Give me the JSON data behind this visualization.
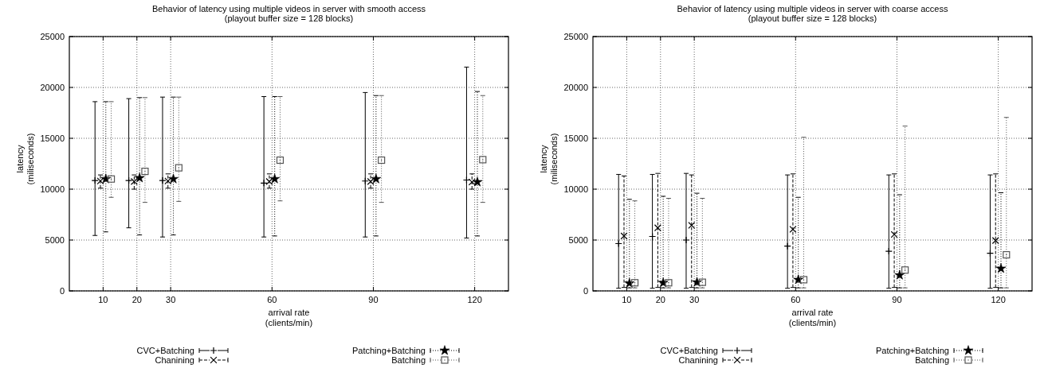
{
  "chart_data": [
    {
      "type": "scatter",
      "title": "Behavior of latency using multiple videos in server with smooth access",
      "subtitle": "(playout buffer size = 128 blocks)",
      "xlabel": "arrival rate\n(clients/min)",
      "ylabel": "latency\n(miliseconds)",
      "xlim": [
        0,
        130
      ],
      "xticks": [
        10,
        20,
        30,
        60,
        90,
        120
      ],
      "ylim": [
        0,
        25000
      ],
      "yticks": [
        0,
        5000,
        10000,
        15000,
        20000,
        25000
      ],
      "grid": true,
      "legend": "bottom",
      "series": [
        {
          "name": "CVC+Batching",
          "color": "#000000",
          "marker": "plus",
          "line_style": "solid",
          "x": [
            7.6,
            17.6,
            27.6,
            57.6,
            87.6,
            117.6
          ],
          "values": [
            10850,
            10850,
            10850,
            10600,
            10800,
            10900
          ],
          "errors": [
            [
              5450,
              18600
            ],
            [
              6200,
              18900
            ],
            [
              5300,
              19050
            ],
            [
              5300,
              19100
            ],
            [
              5300,
              19500
            ],
            [
              5200,
              22000
            ]
          ]
        },
        {
          "name": "Chanining",
          "color": "#000000",
          "marker": "cross",
          "line_style": "dashed",
          "x": [
            9.2,
            19.2,
            29.2,
            59.2,
            89.2,
            119.2
          ],
          "values": [
            10800,
            10750,
            10800,
            10750,
            10750,
            10700
          ],
          "errors": [
            [
              10100,
              11400
            ],
            [
              10000,
              11400
            ],
            [
              10100,
              11500
            ],
            [
              10100,
              11500
            ],
            [
              10100,
              11500
            ],
            [
              10000,
              11500
            ]
          ]
        },
        {
          "name": "Patching+Batching",
          "color": "#000000",
          "marker": "star",
          "line_style": "dotted",
          "x": [
            10.8,
            20.8,
            30.8,
            60.8,
            90.8,
            120.8
          ],
          "values": [
            11000,
            11100,
            11000,
            11000,
            11000,
            10700
          ],
          "errors": [
            [
              5800,
              18600
            ],
            [
              5500,
              19000
            ],
            [
              5500,
              19050
            ],
            [
              5400,
              19100
            ],
            [
              5400,
              19200
            ],
            [
              5400,
              19600
            ]
          ]
        },
        {
          "name": "Batching",
          "color": "#555555",
          "marker": "square",
          "line_style": "dotted",
          "x": [
            12.4,
            22.4,
            32.4,
            62.4,
            92.4,
            122.4
          ],
          "values": [
            11000,
            11750,
            12100,
            12850,
            12850,
            12900
          ],
          "errors": [
            [
              9200,
              18600
            ],
            [
              8700,
              19000
            ],
            [
              8800,
              19050
            ],
            [
              8850,
              19100
            ],
            [
              8700,
              19200
            ],
            [
              8700,
              19200
            ]
          ]
        }
      ]
    },
    {
      "type": "scatter",
      "title": "Behavior of latency using multiple videos in server with coarse access",
      "subtitle": "(playout buffer size = 128 blocks)",
      "xlabel": "arrival rate\n(clients/min)",
      "ylabel": "latency\n(miliseconds)",
      "xlim": [
        0,
        130
      ],
      "xticks": [
        10,
        20,
        30,
        60,
        90,
        120
      ],
      "ylim": [
        0,
        25000
      ],
      "yticks": [
        0,
        5000,
        10000,
        15000,
        20000,
        25000
      ],
      "grid": true,
      "legend": "bottom",
      "series": [
        {
          "name": "CVC+Batching",
          "color": "#000000",
          "marker": "plus",
          "line_style": "solid",
          "x": [
            7.6,
            17.6,
            27.6,
            57.6,
            87.6,
            117.6
          ],
          "values": [
            4650,
            5350,
            5000,
            4400,
            3900,
            3700
          ],
          "errors": [
            [
              260,
              11450
            ],
            [
              260,
              11450
            ],
            [
              260,
              11550
            ],
            [
              260,
              11400
            ],
            [
              260,
              11400
            ],
            [
              260,
              11400
            ]
          ]
        },
        {
          "name": "Chanining",
          "color": "#000000",
          "marker": "cross",
          "line_style": "dashed",
          "x": [
            9.2,
            19.2,
            29.2,
            59.2,
            89.2,
            119.2
          ],
          "values": [
            5400,
            6200,
            6450,
            6050,
            5550,
            4950
          ],
          "errors": [
            [
              340,
              11300
            ],
            [
              340,
              11550
            ],
            [
              340,
              11400
            ],
            [
              340,
              11500
            ],
            [
              340,
              11500
            ],
            [
              340,
              11500
            ]
          ]
        },
        {
          "name": "Patching+Batching",
          "color": "#000000",
          "marker": "star",
          "line_style": "dotted",
          "x": [
            10.8,
            20.8,
            30.8,
            60.8,
            90.8,
            120.8
          ],
          "values": [
            750,
            800,
            850,
            1100,
            1550,
            2200
          ],
          "errors": [
            [
              300,
              9000
            ],
            [
              300,
              9300
            ],
            [
              300,
              9600
            ],
            [
              300,
              9200
            ],
            [
              300,
              9450
            ],
            [
              300,
              9650
            ]
          ]
        },
        {
          "name": "Batching",
          "color": "#555555",
          "marker": "square",
          "line_style": "dotted",
          "x": [
            12.4,
            22.4,
            32.4,
            62.4,
            92.4,
            122.4
          ],
          "values": [
            800,
            800,
            850,
            1100,
            2050,
            3550
          ],
          "errors": [
            [
              300,
              8850
            ],
            [
              300,
              9100
            ],
            [
              300,
              9100
            ],
            [
              300,
              15100
            ],
            [
              300,
              16200
            ],
            [
              300,
              17050
            ]
          ]
        }
      ]
    }
  ]
}
